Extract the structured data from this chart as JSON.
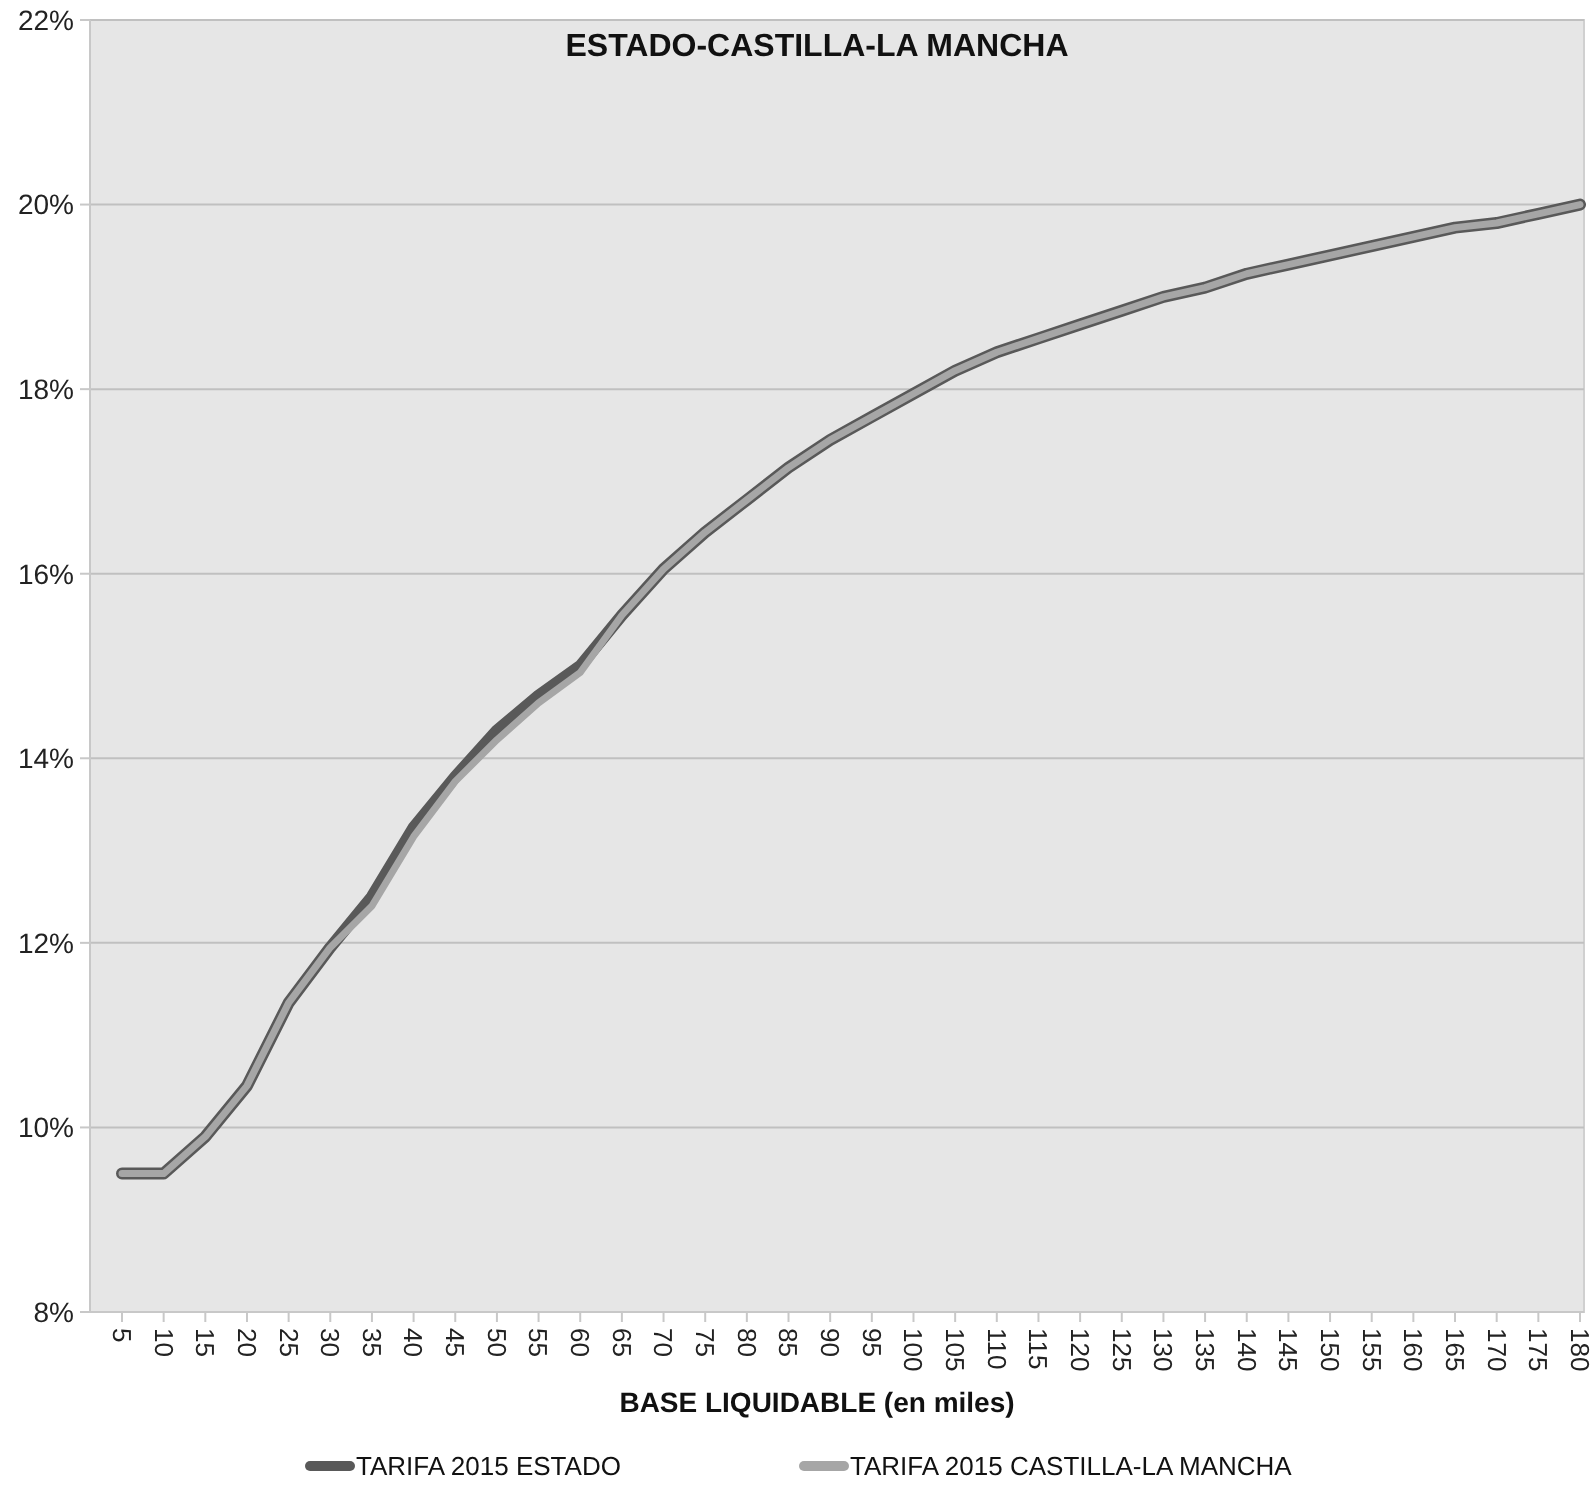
{
  "chart_data": {
    "type": "line",
    "title": "ESTADO-CASTILLA-LA MANCHA",
    "xlabel": "BASE LIQUIDABLE (en miles)",
    "categories": [
      "5",
      "10",
      "15",
      "20",
      "25",
      "30",
      "35",
      "40",
      "45",
      "50",
      "55",
      "60",
      "65",
      "70",
      "75",
      "80",
      "85",
      "90",
      "95",
      "100",
      "105",
      "110",
      "115",
      "120",
      "125",
      "130",
      "135",
      "140",
      "145",
      "150",
      "155",
      "160",
      "165",
      "170",
      "175",
      "180"
    ],
    "series": [
      {
        "name": "TARIFA 2015 ESTADO",
        "color": "#595959",
        "values": [
          9.5,
          9.5,
          9.9,
          10.45,
          11.35,
          11.95,
          12.5,
          13.25,
          13.8,
          14.3,
          14.68,
          15.0,
          15.55,
          16.05,
          16.45,
          16.8,
          17.15,
          17.45,
          17.7,
          17.95,
          18.2,
          18.4,
          18.55,
          18.7,
          18.85,
          19.0,
          19.1,
          19.25,
          19.35,
          19.45,
          19.55,
          19.65,
          19.75,
          19.8,
          19.9,
          20.0
        ]
      },
      {
        "name": "TARIFA 2015 CASTILLA-LA MANCHA",
        "color": "#a6a6a6",
        "values": [
          9.5,
          9.5,
          9.9,
          10.45,
          11.35,
          11.95,
          12.4,
          13.15,
          13.75,
          14.2,
          14.6,
          14.93,
          15.55,
          16.05,
          16.45,
          16.8,
          17.15,
          17.45,
          17.7,
          17.95,
          18.2,
          18.4,
          18.55,
          18.7,
          18.85,
          19.0,
          19.1,
          19.25,
          19.35,
          19.45,
          19.55,
          19.65,
          19.75,
          19.8,
          19.9,
          20.0
        ]
      }
    ],
    "ylim": [
      8,
      22
    ],
    "yticks": [
      {
        "value": 8,
        "label": "8%"
      },
      {
        "value": 10,
        "label": "10%"
      },
      {
        "value": 12,
        "label": "12%"
      },
      {
        "value": 14,
        "label": "14%"
      },
      {
        "value": 16,
        "label": "16%"
      },
      {
        "value": 18,
        "label": "18%"
      },
      {
        "value": 20,
        "label": "20%"
      },
      {
        "value": 22,
        "label": "22%"
      }
    ],
    "grid": "y",
    "legend": "bottom",
    "marker": "none",
    "line_style": "solid"
  }
}
